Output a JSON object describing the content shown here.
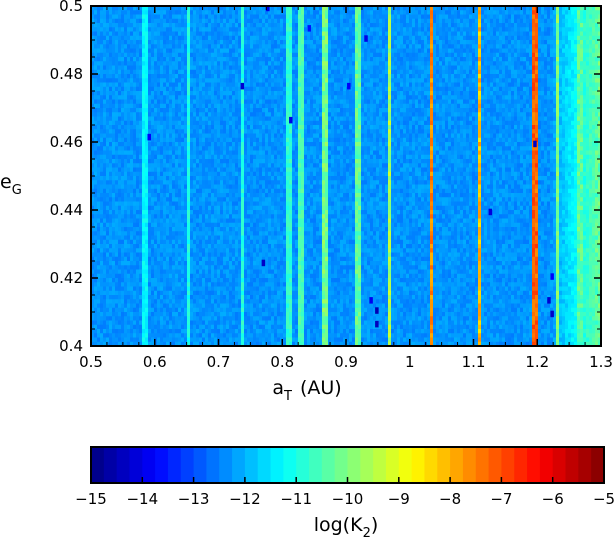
{
  "chart_data": {
    "type": "heatmap",
    "title": "",
    "xlabel": "a",
    "xlabel_sub": "T",
    "xlabel_unit": "(AU)",
    "ylabel": "e",
    "ylabel_sub": "G",
    "xlim": [
      0.5,
      1.3
    ],
    "ylim": [
      0.4,
      0.5
    ],
    "x_ticks": [
      "0.5",
      "0.6",
      "0.7",
      "0.8",
      "0.9",
      "1",
      "1.1",
      "1.2",
      "1.3"
    ],
    "x_tick_values": [
      0.5,
      0.6,
      0.7,
      0.8,
      0.9,
      1.0,
      1.1,
      1.2,
      1.3
    ],
    "y_ticks": [
      "0.4",
      "0.42",
      "0.44",
      "0.46",
      "0.48",
      "0.5"
    ],
    "y_tick_values": [
      0.4,
      0.42,
      0.44,
      0.46,
      0.48,
      0.5
    ],
    "colorbar": {
      "label": "log(K",
      "label_sub": "2",
      "label_close": ")",
      "range": [
        -15,
        -5
      ],
      "ticks": [
        "−15",
        "−14",
        "−13",
        "−12",
        "−11",
        "−10",
        "−9",
        "−8",
        "−7",
        "−6",
        "−5"
      ],
      "tick_values": [
        -15,
        -14,
        -13,
        -12,
        -11,
        -10,
        -9,
        -8,
        -7,
        -6,
        -5
      ]
    },
    "background_log_k2": -12.3,
    "gradient_right_edge_log_k2": -10.2,
    "resonance_bands": [
      {
        "a": 0.583,
        "log_k2": -11.3
      },
      {
        "a": 0.653,
        "log_k2": -11.0
      },
      {
        "a": 0.738,
        "log_k2": -10.9
      },
      {
        "a": 0.811,
        "log_k2": -10.8
      },
      {
        "a": 0.829,
        "log_k2": -10.5
      },
      {
        "a": 0.867,
        "log_k2": -10.1
      },
      {
        "a": 0.918,
        "log_k2": -10.3
      },
      {
        "a": 0.968,
        "log_k2": -9.6
      },
      {
        "a": 1.034,
        "log_k2": -7.6
      },
      {
        "a": 1.109,
        "log_k2": -8.1
      },
      {
        "a": 1.198,
        "log_k2": -7.2
      },
      {
        "a": 1.232,
        "log_k2": -10.0
      },
      {
        "a": 1.268,
        "log_k2": -10.4
      }
    ],
    "low_outliers": [
      {
        "a": 0.777,
        "e": 0.4995,
        "log_k2": -14.0
      },
      {
        "a": 0.842,
        "e": 0.4935,
        "log_k2": -13.6
      },
      {
        "a": 0.931,
        "e": 0.4905,
        "log_k2": -14.0
      },
      {
        "a": 0.737,
        "e": 0.4765,
        "log_k2": -14.2
      },
      {
        "a": 0.904,
        "e": 0.4765,
        "log_k2": -13.8
      },
      {
        "a": 0.813,
        "e": 0.4665,
        "log_k2": -14.0
      },
      {
        "a": 0.591,
        "e": 0.4615,
        "log_k2": -13.8
      },
      {
        "a": 1.196,
        "e": 0.4595,
        "log_k2": -14.3
      },
      {
        "a": 1.126,
        "e": 0.4395,
        "log_k2": -14.1
      },
      {
        "a": 0.77,
        "e": 0.4245,
        "log_k2": -14.3
      },
      {
        "a": 1.223,
        "e": 0.4205,
        "log_k2": -13.8
      },
      {
        "a": 0.939,
        "e": 0.4135,
        "log_k2": -13.9
      },
      {
        "a": 1.218,
        "e": 0.4135,
        "log_k2": -14.2
      },
      {
        "a": 0.948,
        "e": 0.4105,
        "log_k2": -14.5
      },
      {
        "a": 1.223,
        "e": 0.4095,
        "log_k2": -14.3
      },
      {
        "a": 0.948,
        "e": 0.4065,
        "log_k2": -14.4
      }
    ]
  }
}
